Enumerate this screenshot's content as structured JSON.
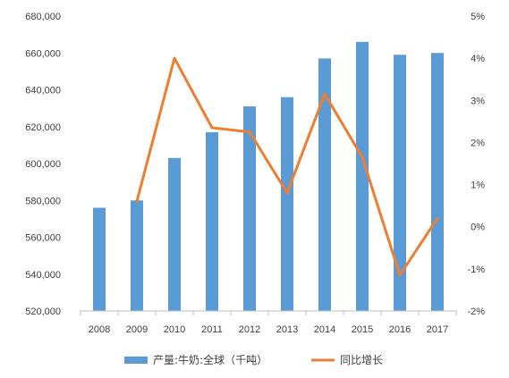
{
  "chart_data": {
    "type": "bar",
    "categories": [
      "2008",
      "2009",
      "2010",
      "2011",
      "2012",
      "2013",
      "2014",
      "2015",
      "2016",
      "2017"
    ],
    "series": [
      {
        "name": "产量:牛奶:全球（千吨）",
        "type": "bar",
        "axis": "left",
        "color": "#5B9BD5",
        "values": [
          576000,
          580000,
          603000,
          617000,
          631000,
          636000,
          657000,
          666000,
          659000,
          660000
        ]
      },
      {
        "name": "同比增长",
        "type": "line",
        "axis": "right",
        "color": "#ED7D31",
        "values": [
          null,
          0.6,
          4.0,
          2.35,
          2.25,
          0.8,
          3.15,
          1.65,
          -1.15,
          0.2
        ]
      }
    ],
    "y_left": {
      "min": 520000,
      "max": 680000,
      "step": 20000,
      "ticks": [
        "520,000",
        "540,000",
        "560,000",
        "580,000",
        "600,000",
        "620,000",
        "640,000",
        "660,000",
        "680,000"
      ]
    },
    "y_right": {
      "min": -2,
      "max": 5,
      "step": 1,
      "ticks": [
        "-2%",
        "-1%",
        "0%",
        "1%",
        "2%",
        "3%",
        "4%",
        "5%"
      ]
    },
    "grid": false,
    "legend": "bottom"
  }
}
